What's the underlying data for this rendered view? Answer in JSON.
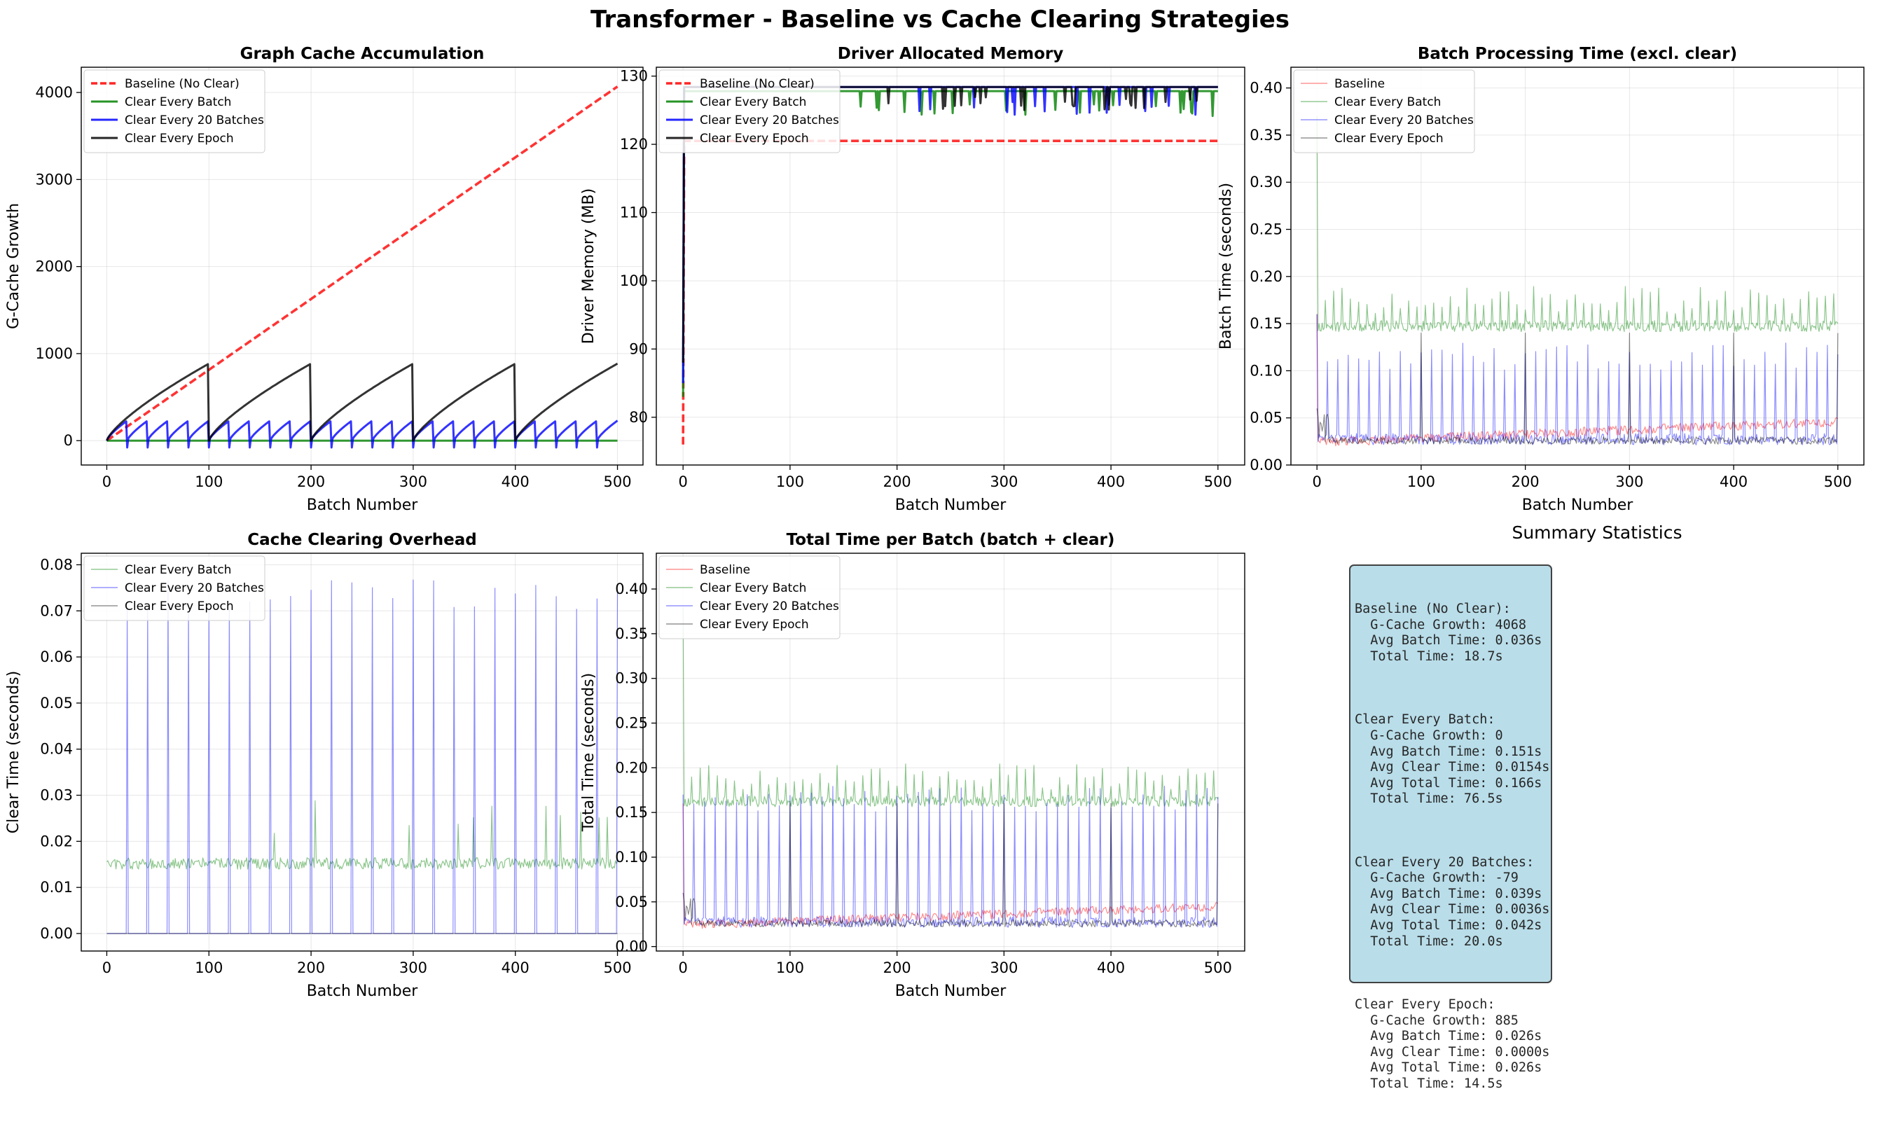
{
  "figure": {
    "title": "Transformer - Baseline vs Cache Clearing Strategies"
  },
  "colors": {
    "baseline": "#ff0000",
    "every_batch": "#008000",
    "every_20": "#0000ff",
    "every_epoch": "#000000"
  },
  "chart_data": [
    {
      "id": "graph-cache",
      "type": "line",
      "title": "Graph Cache Accumulation",
      "xlabel": "Batch Number",
      "ylabel": "G-Cache Growth",
      "xlim": [
        -25,
        525
      ],
      "ylim": [
        -280,
        4290
      ],
      "xticks": [
        0,
        100,
        200,
        300,
        400,
        500
      ],
      "yticks": [
        0,
        1000,
        2000,
        3000,
        4000
      ],
      "legend": "top-left",
      "grid": true,
      "series": [
        {
          "name": "Baseline (No Clear)",
          "key": "baseline",
          "style": "dashed",
          "pattern": "linear",
          "start": 0,
          "end": 4068
        },
        {
          "name": "Clear Every Batch",
          "key": "every_batch",
          "style": "solid",
          "pattern": "flat",
          "value": 0
        },
        {
          "name": "Clear Every 20 Batches",
          "key": "every_20",
          "style": "solid",
          "pattern": "sawtooth",
          "period": 20,
          "peak": 230,
          "reset": -79
        },
        {
          "name": "Clear Every Epoch",
          "key": "every_epoch",
          "style": "solid",
          "pattern": "sawtooth",
          "period": 100,
          "peak": 885,
          "reset": 0
        }
      ]
    },
    {
      "id": "driver-memory",
      "type": "line",
      "title": "Driver Allocated Memory",
      "xlabel": "Batch Number",
      "ylabel": "Driver Memory (MB)",
      "xlim": [
        -25,
        525
      ],
      "ylim": [
        73,
        131.3
      ],
      "xticks": [
        0,
        100,
        200,
        300,
        400,
        500
      ],
      "yticks": [
        80,
        90,
        100,
        110,
        120,
        130
      ],
      "legend": "top-left",
      "grid": true,
      "series": [
        {
          "name": "Baseline (No Clear)",
          "key": "baseline",
          "style": "dashed",
          "pattern": "memory",
          "start": 76,
          "level": 120.5
        },
        {
          "name": "Clear Every Batch",
          "key": "every_batch",
          "style": "solid",
          "pattern": "memory",
          "start": 83,
          "level": 127.8,
          "dip": 124
        },
        {
          "name": "Clear Every 20 Batches",
          "key": "every_20",
          "style": "solid",
          "pattern": "memory",
          "start": 85,
          "level": 128.4,
          "dip": 124.3
        },
        {
          "name": "Clear Every Epoch",
          "key": "every_epoch",
          "style": "solid",
          "pattern": "memory",
          "start": 88,
          "level": 128.4,
          "dip": 125
        }
      ]
    },
    {
      "id": "batch-time",
      "type": "line",
      "title": "Batch Processing Time (excl. clear)",
      "xlabel": "Batch Number",
      "ylabel": "Batch Time (seconds)",
      "xlim": [
        -25,
        525
      ],
      "ylim": [
        0,
        0.422
      ],
      "xticks": [
        0,
        100,
        200,
        300,
        400,
        500
      ],
      "yticks": [
        0.0,
        0.05,
        0.1,
        0.15,
        0.2,
        0.25,
        0.3,
        0.35,
        0.4
      ],
      "legend": "top-left",
      "grid": true,
      "series": [
        {
          "name": "Baseline",
          "key": "baseline",
          "style": "thin",
          "pattern": "rising",
          "start": 0.024,
          "end": 0.046,
          "first": 0.16
        },
        {
          "name": "Clear Every Batch",
          "key": "every_batch",
          "style": "thin",
          "pattern": "spiky",
          "base": 0.145,
          "spike": 0.19,
          "period": 8,
          "first": 0.37
        },
        {
          "name": "Clear Every 20 Batches",
          "key": "every_20",
          "style": "thin",
          "pattern": "spiky",
          "base": 0.025,
          "spike": 0.13,
          "period": 10,
          "first": 0.16
        },
        {
          "name": "Clear Every Epoch",
          "key": "every_epoch",
          "style": "thin",
          "pattern": "epoch",
          "base": 0.022,
          "spike": 0.14,
          "period": 100,
          "first": 0.06
        }
      ]
    },
    {
      "id": "clear-overhead",
      "type": "line",
      "title": "Cache Clearing Overhead",
      "xlabel": "Batch Number",
      "ylabel": "Clear Time (seconds)",
      "xlim": [
        -25,
        525
      ],
      "ylim": [
        -0.0038,
        0.0825
      ],
      "xticks": [
        0,
        100,
        200,
        300,
        400,
        500
      ],
      "yticks": [
        0.0,
        0.01,
        0.02,
        0.03,
        0.04,
        0.05,
        0.06,
        0.07,
        0.08
      ],
      "legend": "top-left",
      "grid": true,
      "series": [
        {
          "name": "Clear Every Batch",
          "key": "every_batch",
          "style": "thin",
          "pattern": "noisy",
          "base": 0.0152
        },
        {
          "name": "Clear Every 20 Batches",
          "key": "every_20",
          "style": "thin",
          "pattern": "spikes20",
          "period": 20,
          "spike": 0.07
        },
        {
          "name": "Clear Every Epoch",
          "key": "every_epoch",
          "style": "thin",
          "pattern": "flat",
          "value": 0.0
        }
      ]
    },
    {
      "id": "total-time",
      "type": "line",
      "title": "Total Time per Batch (batch + clear)",
      "xlabel": "Batch Number",
      "ylabel": "Total Time (seconds)",
      "xlim": [
        -25,
        525
      ],
      "ylim": [
        -0.005,
        0.44
      ],
      "xticks": [
        0,
        100,
        200,
        300,
        400,
        500
      ],
      "yticks": [
        0.0,
        0.05,
        0.1,
        0.15,
        0.2,
        0.25,
        0.3,
        0.35,
        0.4
      ],
      "legend": "top-left",
      "grid": true,
      "series": [
        {
          "name": "Baseline",
          "key": "baseline",
          "style": "thin",
          "pattern": "rising",
          "start": 0.024,
          "end": 0.045,
          "first": 0.16
        },
        {
          "name": "Clear Every Batch",
          "key": "every_batch",
          "style": "thin",
          "pattern": "spiky",
          "base": 0.16,
          "spike": 0.205,
          "period": 8,
          "first": 0.38
        },
        {
          "name": "Clear Every 20 Batches",
          "key": "every_20",
          "style": "thin",
          "pattern": "spiky",
          "base": 0.025,
          "spike": 0.18,
          "period": 10,
          "first": 0.17
        },
        {
          "name": "Clear Every Epoch",
          "key": "every_epoch",
          "style": "thin",
          "pattern": "epoch",
          "base": 0.022,
          "spike": 0.16,
          "period": 100,
          "first": 0.06
        }
      ]
    }
  ],
  "summary": {
    "title": "Summary Statistics",
    "blocks": [
      {
        "header": "Baseline (No Clear):",
        "lines": [
          "  G-Cache Growth: 4068",
          "  Avg Batch Time: 0.036s",
          "  Total Time: 18.7s"
        ]
      },
      {
        "header": "Clear Every Batch:",
        "lines": [
          "  G-Cache Growth: 0",
          "  Avg Batch Time: 0.151s",
          "  Avg Clear Time: 0.0154s",
          "  Avg Total Time: 0.166s",
          "  Total Time: 76.5s"
        ]
      },
      {
        "header": "Clear Every 20 Batches:",
        "lines": [
          "  G-Cache Growth: -79",
          "  Avg Batch Time: 0.039s",
          "  Avg Clear Time: 0.0036s",
          "  Avg Total Time: 0.042s",
          "  Total Time: 20.0s"
        ]
      },
      {
        "header": "Clear Every Epoch:",
        "lines": [
          "  G-Cache Growth: 885",
          "  Avg Batch Time: 0.026s",
          "  Avg Clear Time: 0.0000s",
          "  Avg Total Time: 0.026s",
          "  Total Time: 14.5s"
        ]
      }
    ]
  }
}
